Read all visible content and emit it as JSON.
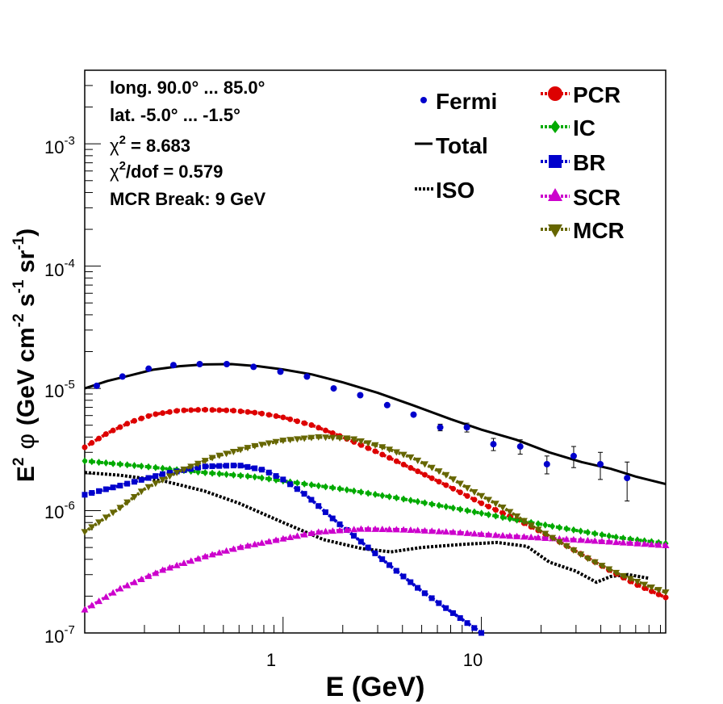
{
  "chart_data": {
    "type": "line",
    "xscale": "log",
    "yscale": "log",
    "xlim": [
      0.1,
      85
    ],
    "ylim": [
      1e-07,
      0.004
    ],
    "xlabel": "E (GeV)",
    "ylabel": {
      "prefix": "E",
      "prefix_sup": "2",
      "phi": "φ",
      "unit_1": "(GeV cm",
      "unit_sup_1": "-2",
      "unit_2": " s",
      "unit_sup_2": "-1",
      "unit_3": " sr",
      "unit_sup_3": "-1",
      "unit_4": ")"
    },
    "x_ticks": [
      {
        "value": 1,
        "label": "1"
      },
      {
        "value": 10,
        "label": "10"
      }
    ],
    "y_ticks": [
      {
        "value": 1e-07,
        "base": "10",
        "exp": "-7"
      },
      {
        "value": 1e-06,
        "base": "10",
        "exp": "-6"
      },
      {
        "value": 1e-05,
        "base": "10",
        "exp": "-5"
      },
      {
        "value": 0.0001,
        "base": "10",
        "exp": "-4"
      },
      {
        "value": 0.001,
        "base": "10",
        "exp": "-3"
      }
    ],
    "info": {
      "longitude": "long. 90.0° ... 85.0°",
      "latitude": "lat. -5.0° ... -1.5°",
      "chi2_symbol": "χ",
      "chi2_sup": "2",
      "chi2_value": " = 8.683",
      "chi2dof_symbol": "χ",
      "chi2dof_sup": "2",
      "chi2dof_value": "/dof = 0.579",
      "mcr_break": "MCR Break:  9 GeV"
    },
    "fermi": {
      "name": "Fermi",
      "color": "#0000cc",
      "points": [
        {
          "x": 0.115,
          "y": 1.05e-05,
          "err": 0
        },
        {
          "x": 0.155,
          "y": 1.25e-05,
          "err": 0
        },
        {
          "x": 0.21,
          "y": 1.45e-05,
          "err": 0
        },
        {
          "x": 0.28,
          "y": 1.55e-05,
          "err": 0
        },
        {
          "x": 0.38,
          "y": 1.58e-05,
          "err": 0
        },
        {
          "x": 0.52,
          "y": 1.58e-05,
          "err": 0
        },
        {
          "x": 0.71,
          "y": 1.5e-05,
          "err": 0
        },
        {
          "x": 0.97,
          "y": 1.37e-05,
          "err": 0
        },
        {
          "x": 1.32,
          "y": 1.25e-05,
          "err": 0
        },
        {
          "x": 1.8,
          "y": 1e-05,
          "err": 0
        },
        {
          "x": 2.45,
          "y": 8.8e-06,
          "err": 0
        },
        {
          "x": 3.35,
          "y": 7.3e-06,
          "err": 0
        },
        {
          "x": 4.55,
          "y": 6.1e-06,
          "err": 2e-07
        },
        {
          "x": 6.2,
          "y": 4.8e-06,
          "err": 3e-07
        },
        {
          "x": 8.45,
          "y": 4.8e-06,
          "err": 4e-07
        },
        {
          "x": 11.5,
          "y": 3.5e-06,
          "err": 4e-07
        },
        {
          "x": 15.7,
          "y": 3.35e-06,
          "err": 4.5e-07
        },
        {
          "x": 21.4,
          "y": 2.4e-06,
          "err": 4e-07
        },
        {
          "x": 29.2,
          "y": 2.8e-06,
          "err": 5.5e-07
        },
        {
          "x": 39.8,
          "y": 2.4e-06,
          "err": 6e-07
        },
        {
          "x": 54.3,
          "y": 1.85e-06,
          "err": 6.5e-07
        }
      ]
    },
    "series": [
      {
        "name": "Total",
        "color": "#000000",
        "style": "solid",
        "marker": "none",
        "points": [
          [
            0.1,
            1e-05
          ],
          [
            0.13,
            1.15e-05
          ],
          [
            0.17,
            1.28e-05
          ],
          [
            0.22,
            1.42e-05
          ],
          [
            0.3,
            1.52e-05
          ],
          [
            0.4,
            1.57e-05
          ],
          [
            0.55,
            1.58e-05
          ],
          [
            0.75,
            1.52e-05
          ],
          [
            1.0,
            1.43e-05
          ],
          [
            1.4,
            1.3e-05
          ],
          [
            2.0,
            1.12e-05
          ],
          [
            3.0,
            9.2e-06
          ],
          [
            4.5,
            7.3e-06
          ],
          [
            7.0,
            5.6e-06
          ],
          [
            10,
            4.6e-06
          ],
          [
            15,
            3.8e-06
          ],
          [
            22,
            3e-06
          ],
          [
            32,
            2.5e-06
          ],
          [
            45,
            2.2e-06
          ],
          [
            60,
            1.9e-06
          ],
          [
            85,
            1.65e-06
          ]
        ]
      },
      {
        "name": "ISO",
        "color": "#000000",
        "style": "dotted",
        "marker": "none",
        "points": [
          [
            0.1,
            2.05e-06
          ],
          [
            0.15,
            1.95e-06
          ],
          [
            0.25,
            1.75e-06
          ],
          [
            0.4,
            1.45e-06
          ],
          [
            0.6,
            1.15e-06
          ],
          [
            1.0,
            8e-07
          ],
          [
            1.6,
            5.8e-07
          ],
          [
            2.5,
            4.9e-07
          ],
          [
            3.5,
            4.6e-07
          ],
          [
            5,
            5e-07
          ],
          [
            8,
            5.3e-07
          ],
          [
            12,
            5.5e-07
          ],
          [
            17,
            5.1e-07
          ],
          [
            22,
            3.8e-07
          ],
          [
            30,
            3.2e-07
          ],
          [
            38,
            2.6e-07
          ],
          [
            45,
            2.9e-07
          ],
          [
            55,
            3e-07
          ],
          [
            70,
            2.8e-07
          ]
        ]
      },
      {
        "name": "PCR",
        "color": "#dd0000",
        "style": "dashed",
        "marker": "circle",
        "points": [
          [
            0.1,
            3.3e-06
          ],
          [
            0.13,
            4.3e-06
          ],
          [
            0.17,
            5.3e-06
          ],
          [
            0.22,
            6.1e-06
          ],
          [
            0.3,
            6.6e-06
          ],
          [
            0.4,
            6.7e-06
          ],
          [
            0.55,
            6.6e-06
          ],
          [
            0.75,
            6.3e-06
          ],
          [
            1.0,
            5.8e-06
          ],
          [
            1.4,
            5e-06
          ],
          [
            2.0,
            4e-06
          ],
          [
            3.0,
            3e-06
          ],
          [
            4.5,
            2.2e-06
          ],
          [
            7.0,
            1.55e-06
          ],
          [
            10,
            1.15e-06
          ],
          [
            15,
            8.5e-07
          ],
          [
            22,
            6.2e-07
          ],
          [
            32,
            4.4e-07
          ],
          [
            45,
            3.2e-07
          ],
          [
            60,
            2.5e-07
          ],
          [
            85,
            1.95e-07
          ]
        ]
      },
      {
        "name": "IC",
        "color": "#00aa00",
        "style": "dashed",
        "marker": "diamond",
        "points": [
          [
            0.1,
            2.55e-06
          ],
          [
            0.2,
            2.3e-06
          ],
          [
            0.4,
            2.05e-06
          ],
          [
            0.7,
            1.9e-06
          ],
          [
            1.0,
            1.75e-06
          ],
          [
            2.0,
            1.5e-06
          ],
          [
            4.0,
            1.25e-06
          ],
          [
            8.0,
            1.02e-06
          ],
          [
            15,
            8.4e-07
          ],
          [
            30,
            6.9e-07
          ],
          [
            50,
            6e-07
          ],
          [
            85,
            5.4e-07
          ]
        ]
      },
      {
        "name": "BR",
        "color": "#0000cc",
        "style": "dashed",
        "marker": "square",
        "points": [
          [
            0.1,
            1.35e-06
          ],
          [
            0.15,
            1.6e-06
          ],
          [
            0.25,
            2e-06
          ],
          [
            0.4,
            2.3e-06
          ],
          [
            0.6,
            2.35e-06
          ],
          [
            0.8,
            2.15e-06
          ],
          [
            1.0,
            1.8e-06
          ],
          [
            1.3,
            1.35e-06
          ],
          [
            1.8,
            8.5e-07
          ],
          [
            2.5,
            5.5e-07
          ],
          [
            3.5,
            3.5e-07
          ],
          [
            5,
            2.2e-07
          ],
          [
            7,
            1.5e-07
          ],
          [
            10,
            1e-07
          ]
        ]
      },
      {
        "name": "SCR",
        "color": "#cc00cc",
        "style": "dashed",
        "marker": "triangle-up",
        "points": [
          [
            0.1,
            1.55e-07
          ],
          [
            0.15,
            2.3e-07
          ],
          [
            0.25,
            3.3e-07
          ],
          [
            0.4,
            4.2e-07
          ],
          [
            0.6,
            5e-07
          ],
          [
            1.0,
            5.9e-07
          ],
          [
            1.5,
            6.7e-07
          ],
          [
            2.5,
            7.1e-07
          ],
          [
            4,
            7e-07
          ],
          [
            7,
            6.7e-07
          ],
          [
            12,
            6.3e-07
          ],
          [
            20,
            6e-07
          ],
          [
            35,
            5.7e-07
          ],
          [
            60,
            5.4e-07
          ],
          [
            85,
            5.2e-07
          ]
        ]
      },
      {
        "name": "MCR",
        "color": "#666600",
        "style": "dashed",
        "marker": "triangle-down",
        "points": [
          [
            0.1,
            6.7e-07
          ],
          [
            0.15,
            1.05e-06
          ],
          [
            0.2,
            1.5e-06
          ],
          [
            0.3,
            2.1e-06
          ],
          [
            0.45,
            2.75e-06
          ],
          [
            0.7,
            3.35e-06
          ],
          [
            1.0,
            3.75e-06
          ],
          [
            1.5,
            4e-06
          ],
          [
            2.2,
            3.9e-06
          ],
          [
            3.2,
            3.3e-06
          ],
          [
            4.5,
            2.7e-06
          ],
          [
            6.5,
            2e-06
          ],
          [
            9,
            1.45e-06
          ],
          [
            13,
            1.05e-06
          ],
          [
            18,
            7.5e-07
          ],
          [
            25,
            5.5e-07
          ],
          [
            35,
            4e-07
          ],
          [
            50,
            3e-07
          ],
          [
            70,
            2.4e-07
          ],
          [
            85,
            2.15e-07
          ]
        ]
      }
    ]
  }
}
